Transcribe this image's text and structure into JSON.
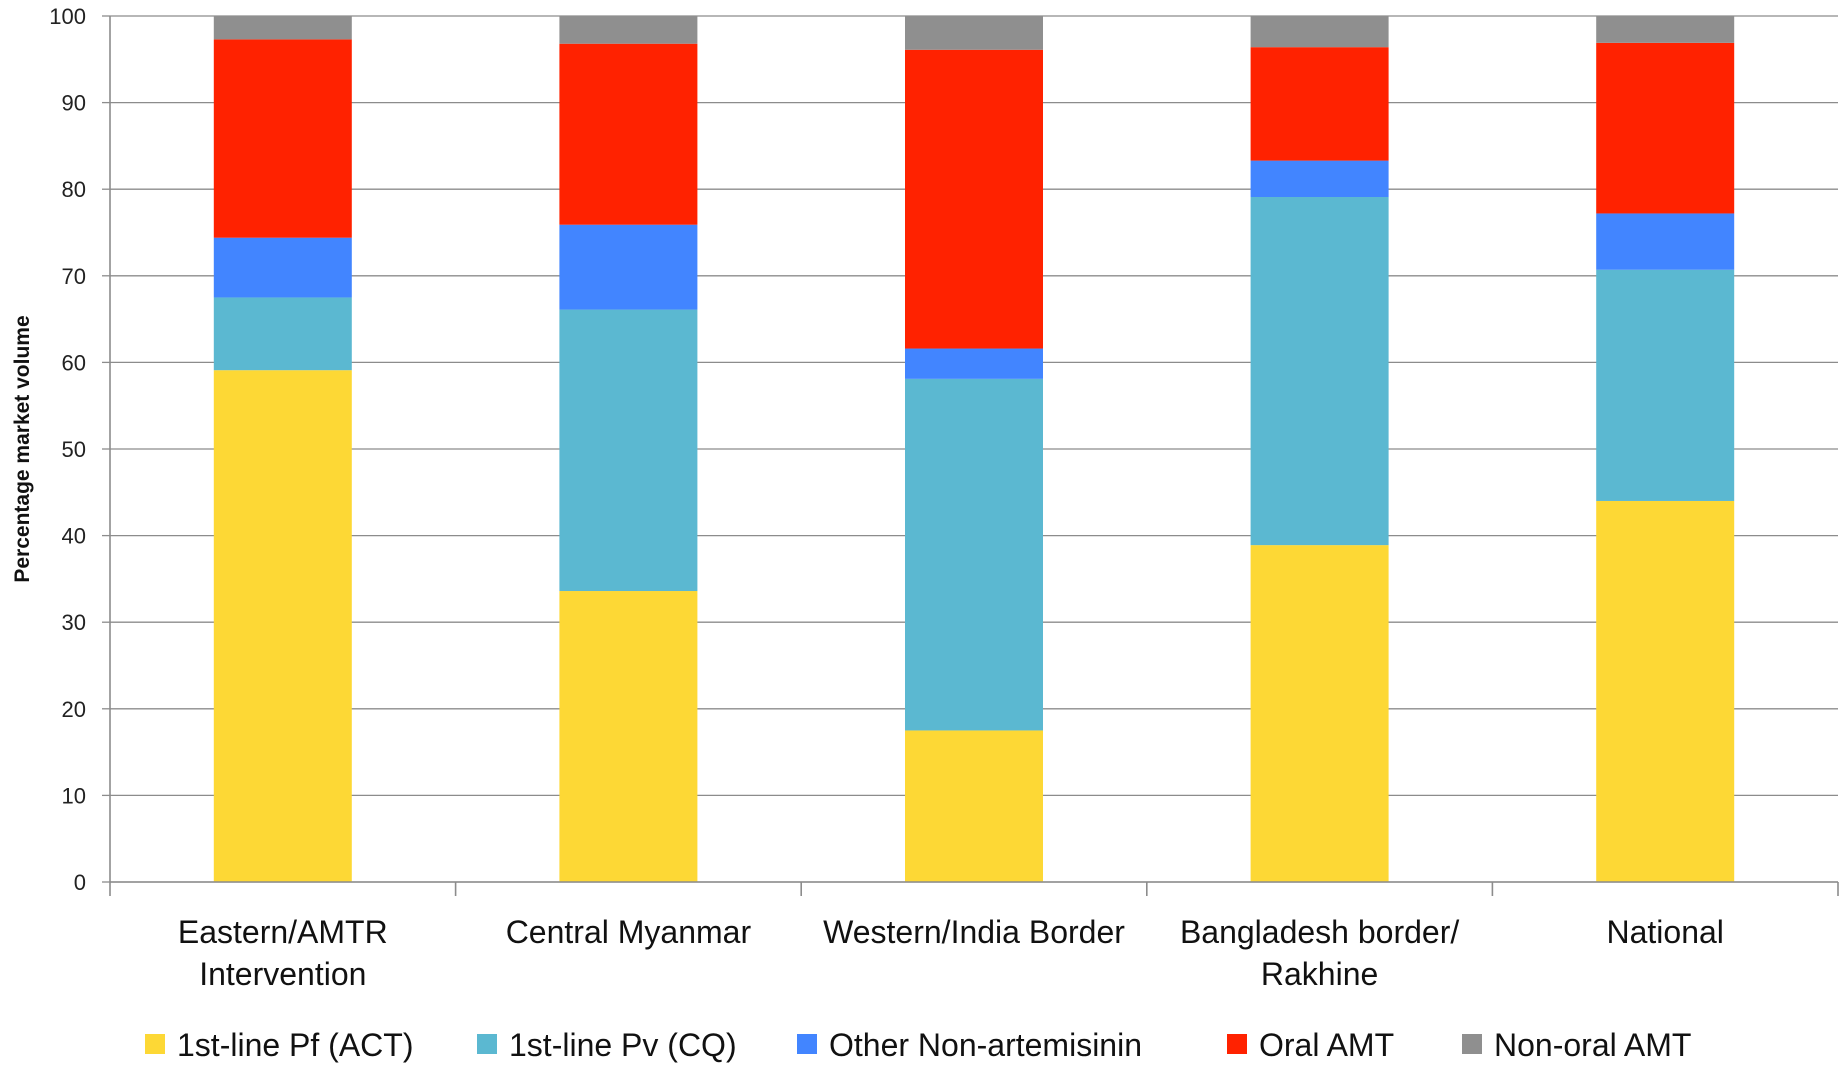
{
  "chart_data": {
    "type": "bar",
    "stacked": true,
    "ylabel": "Percentage market volume",
    "ylim": [
      0,
      100
    ],
    "yticks": [
      0,
      10,
      20,
      30,
      40,
      50,
      60,
      70,
      80,
      90,
      100
    ],
    "grid": true,
    "legend_position": "bottom",
    "categories": [
      [
        "Eastern/AMTR",
        "Intervention"
      ],
      [
        "Central Myanmar"
      ],
      [
        "Western/India Border"
      ],
      [
        "Bangladesh border/",
        "Rakhine"
      ],
      [
        "National"
      ]
    ],
    "series": [
      {
        "name": "1st-line Pf (ACT)",
        "color": "#FDD835",
        "values": [
          59.1,
          33.6,
          17.5,
          38.9,
          44.0
        ]
      },
      {
        "name": "1st-line Pv (CQ)",
        "color": "#5BB8D1",
        "values": [
          8.4,
          32.5,
          40.6,
          40.2,
          26.7
        ]
      },
      {
        "name": "Other Non-artemisinin",
        "color": "#4285FF",
        "values": [
          6.9,
          9.8,
          3.5,
          4.2,
          6.5
        ]
      },
      {
        "name": "Oral AMT",
        "color": "#FF2200",
        "values": [
          22.9,
          20.9,
          34.5,
          13.1,
          19.7
        ]
      },
      {
        "name": "Non-oral AMT",
        "color": "#8F8F8F",
        "values": [
          2.7,
          3.2,
          3.9,
          3.6,
          3.1
        ]
      }
    ]
  }
}
